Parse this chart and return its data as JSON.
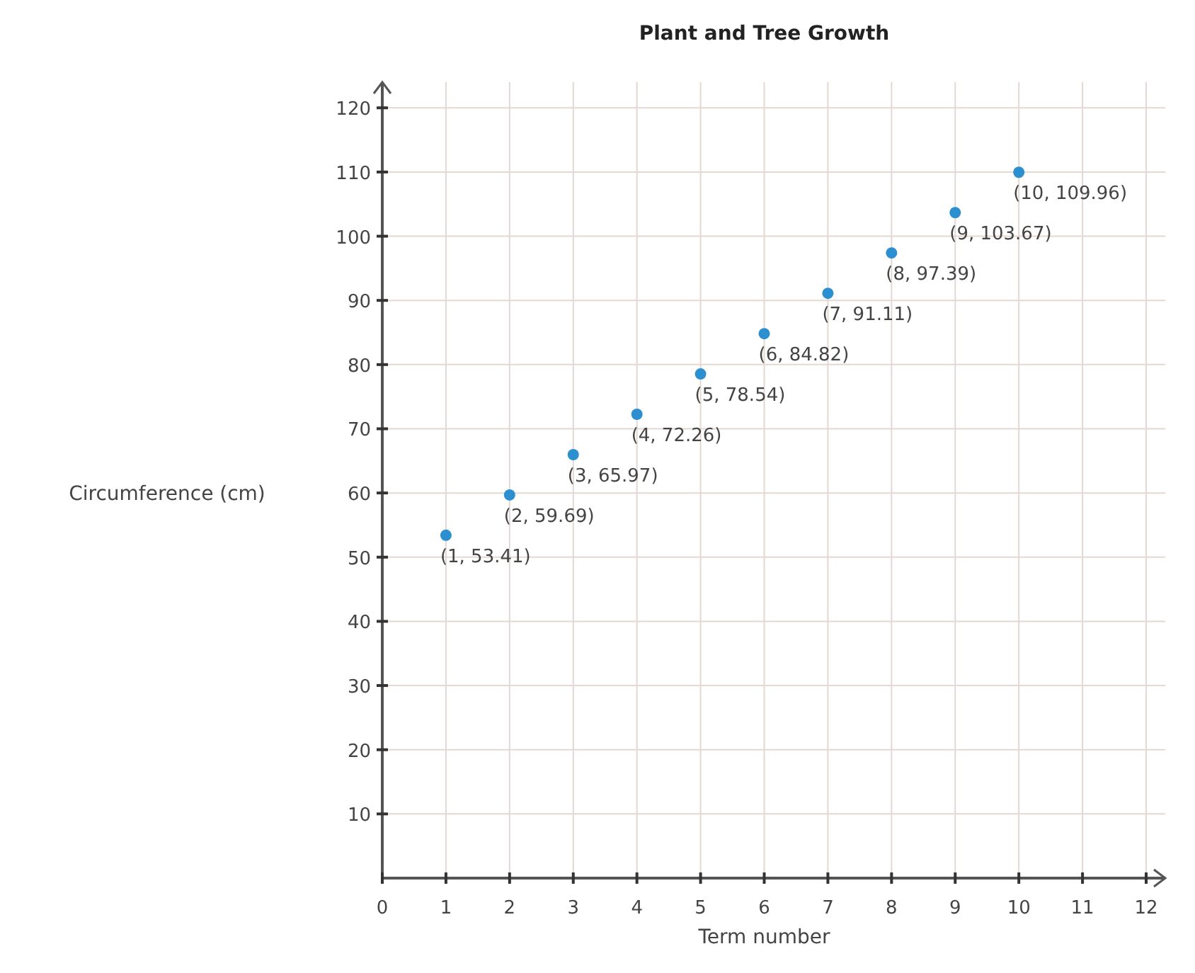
{
  "chart_data": {
    "type": "scatter",
    "title": "Plant and Tree Growth",
    "xlabel": "Term number",
    "ylabel": "Circumference (cm)",
    "x": [
      1,
      2,
      3,
      4,
      5,
      6,
      7,
      8,
      9,
      10
    ],
    "values": [
      53.41,
      59.69,
      65.97,
      72.26,
      78.54,
      84.82,
      91.11,
      97.39,
      103.67,
      109.96
    ],
    "value_labels": [
      "(1, 53.41)",
      "(2, 59.69)",
      "(3, 65.97)",
      "(4, 72.26)",
      "(5, 78.54)",
      "(6, 84.82)",
      "(7, 91.11)",
      "(8, 97.39)",
      "(9, 103.67)",
      "(10, 109.96)"
    ],
    "color": "#2b8fd0",
    "marker": "circle",
    "xlim": [
      0,
      12.3
    ],
    "ylim": [
      0,
      124
    ],
    "xticks": [
      0,
      1,
      2,
      3,
      4,
      5,
      6,
      7,
      8,
      9,
      10,
      11,
      12
    ],
    "yticks": [
      10,
      20,
      30,
      40,
      50,
      60,
      70,
      80,
      90,
      100,
      110,
      120
    ],
    "grid": true
  }
}
